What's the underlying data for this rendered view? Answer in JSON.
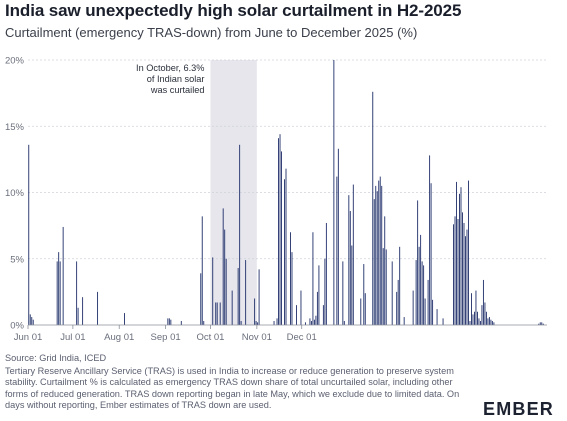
{
  "header": {
    "title": "India saw unexpectedly high solar curtailment in H2-2025",
    "subtitle": "Curtailment (emergency TRAS-down) from June to December 2025 (%)"
  },
  "footer": {
    "source": "Source: Grid India, ICED",
    "note": "Tertiary Reserve Ancillary Service (TRAS) is used in India to increase or reduce generation to preserve system stability. Curtailment % is calculated as emergency TRAS down share of total uncurtailed solar, including other forms of reduced generation. TRAS down reporting began in late May, which we exclude due to limited data. On days without reporting, Ember estimates of TRAS down are used.",
    "logo": "EMBER"
  },
  "colors": {
    "bar": "#26356e",
    "highlight": "#e6e6ec",
    "grid": "#cfd2da",
    "axis": "#8a8f9a"
  },
  "chart_data": {
    "type": "bar",
    "title": "India saw unexpectedly high solar curtailment in H2-2025",
    "subtitle": "Curtailment (emergency TRAS-down) from June to December 2025 (%)",
    "xlabel": "",
    "ylabel": "",
    "x_start": "2025-06-01",
    "x_ticks": [
      {
        "label": "Jun 01",
        "date": "2025-06-01"
      },
      {
        "label": "Jul 01",
        "date": "2025-07-01"
      },
      {
        "label": "Aug 01",
        "date": "2025-08-01"
      },
      {
        "label": "Sep 01",
        "date": "2025-09-01"
      },
      {
        "label": "Oct 01",
        "date": "2025-10-01"
      },
      {
        "label": "Nov 01",
        "date": "2025-11-01"
      },
      {
        "label": "Dec 01",
        "date": "2025-12-01"
      }
    ],
    "y_ticks": [
      {
        "label": "0%",
        "value": 0
      },
      {
        "label": "5%",
        "value": 5
      },
      {
        "label": "10%",
        "value": 10
      },
      {
        "label": "15%",
        "value": 15
      },
      {
        "label": "20%",
        "value": 20
      }
    ],
    "ylim": [
      0,
      20
    ],
    "grid": true,
    "highlight_range": {
      "from": "2025-10-01",
      "to": "2025-11-01"
    },
    "annotation": {
      "lines": [
        "In October, 6.3%",
        "of Indian solar",
        "was curtailed"
      ],
      "anchor_date": "2025-10-01"
    },
    "series": [
      {
        "values": [
          13.6,
          0.8,
          0.6,
          0.4,
          0,
          0,
          0,
          0,
          0,
          0,
          0,
          0,
          0,
          0,
          0,
          0,
          0,
          0,
          0,
          4.8,
          5.5,
          4.8,
          0,
          7.4,
          0,
          0,
          0,
          0,
          0,
          0,
          0,
          0,
          4.8,
          1.3,
          0,
          0,
          2.1,
          0,
          0,
          0,
          0,
          0,
          0,
          0,
          0,
          0,
          2.5,
          0,
          0,
          0,
          0,
          0,
          0,
          0,
          0,
          0,
          0,
          0,
          0,
          0,
          0,
          0,
          0,
          0,
          0.9,
          0,
          0,
          0,
          0,
          0,
          0,
          0,
          0,
          0,
          0,
          0,
          0,
          0,
          0,
          0,
          0,
          0,
          0,
          0,
          0,
          0,
          0,
          0,
          0,
          0,
          0,
          0,
          0,
          0.5,
          0.5,
          0.4,
          0,
          0,
          0,
          0,
          0,
          0,
          0.3,
          0,
          0,
          0,
          0,
          0,
          0,
          0,
          0,
          0,
          0,
          0,
          0,
          3.9,
          8.2,
          0.3,
          0,
          0,
          0,
          0,
          0,
          5.1,
          0,
          1.7,
          1.7,
          0,
          1.7,
          0,
          8.8,
          7.2,
          5.0,
          0,
          0,
          0,
          2.6,
          0,
          0,
          0,
          4.3,
          13.6,
          0.3,
          0,
          0,
          4.9,
          0,
          0,
          0,
          0,
          0,
          2.0,
          0.3,
          0.2,
          4.2,
          0,
          0,
          0,
          0,
          0,
          0,
          0,
          0,
          0,
          0.3,
          0,
          0.5,
          14.1,
          14.4,
          13.1,
          0,
          11.0,
          11.8,
          0,
          0,
          7.0,
          5.5,
          0,
          0,
          1.5,
          0,
          0,
          2.6,
          0,
          0,
          0.2,
          0,
          0,
          0.5,
          0.3,
          7.0,
          0.4,
          0.7,
          2.5,
          4.5,
          0,
          0,
          1.5,
          5.0,
          7.7,
          0,
          0,
          0,
          0,
          20.0,
          0,
          11.2,
          13.3,
          0,
          0,
          4.8,
          0.3,
          0,
          0,
          9.8,
          8.6,
          6.0,
          10.6,
          0,
          0,
          0,
          0,
          2.0,
          0,
          4.6,
          2.4,
          0,
          0,
          0,
          0,
          17.6,
          9.5,
          10.5,
          10.1,
          10.9,
          11.2,
          10.5,
          5.8,
          8.2,
          5.7,
          0,
          0,
          0,
          4.8,
          0,
          0,
          2.5,
          3.4,
          5.9,
          0,
          0,
          0.6,
          0,
          0,
          0,
          0,
          0,
          2.6,
          0,
          4.9,
          9.4,
          5.9,
          6.8,
          4.8,
          4.5,
          2.0,
          0,
          3.4,
          12.8,
          10.7,
          1.9,
          0,
          0,
          1.2,
          0,
          0,
          0,
          0.5,
          0,
          0,
          0,
          0,
          0,
          0,
          7.6,
          8.2,
          10.8,
          8.0,
          9.9,
          10.4,
          8.5,
          7.7,
          6.7,
          7.2,
          10.9,
          0.3,
          2.4,
          0.8,
          1.0,
          2.6,
          1.0,
          0.5,
          0.3,
          1.5,
          3.4,
          1.7,
          1.0,
          0.5,
          0.6,
          0.4,
          0.3,
          0.2,
          0,
          0,
          0,
          0,
          0,
          0,
          0,
          0,
          0,
          0,
          0,
          0,
          0,
          0,
          0,
          0,
          0,
          0,
          0,
          0,
          0,
          0,
          0,
          0,
          0,
          0,
          0,
          0,
          0,
          0.1,
          0.2,
          0.2,
          0.1,
          0,
          0
        ]
      }
    ]
  }
}
